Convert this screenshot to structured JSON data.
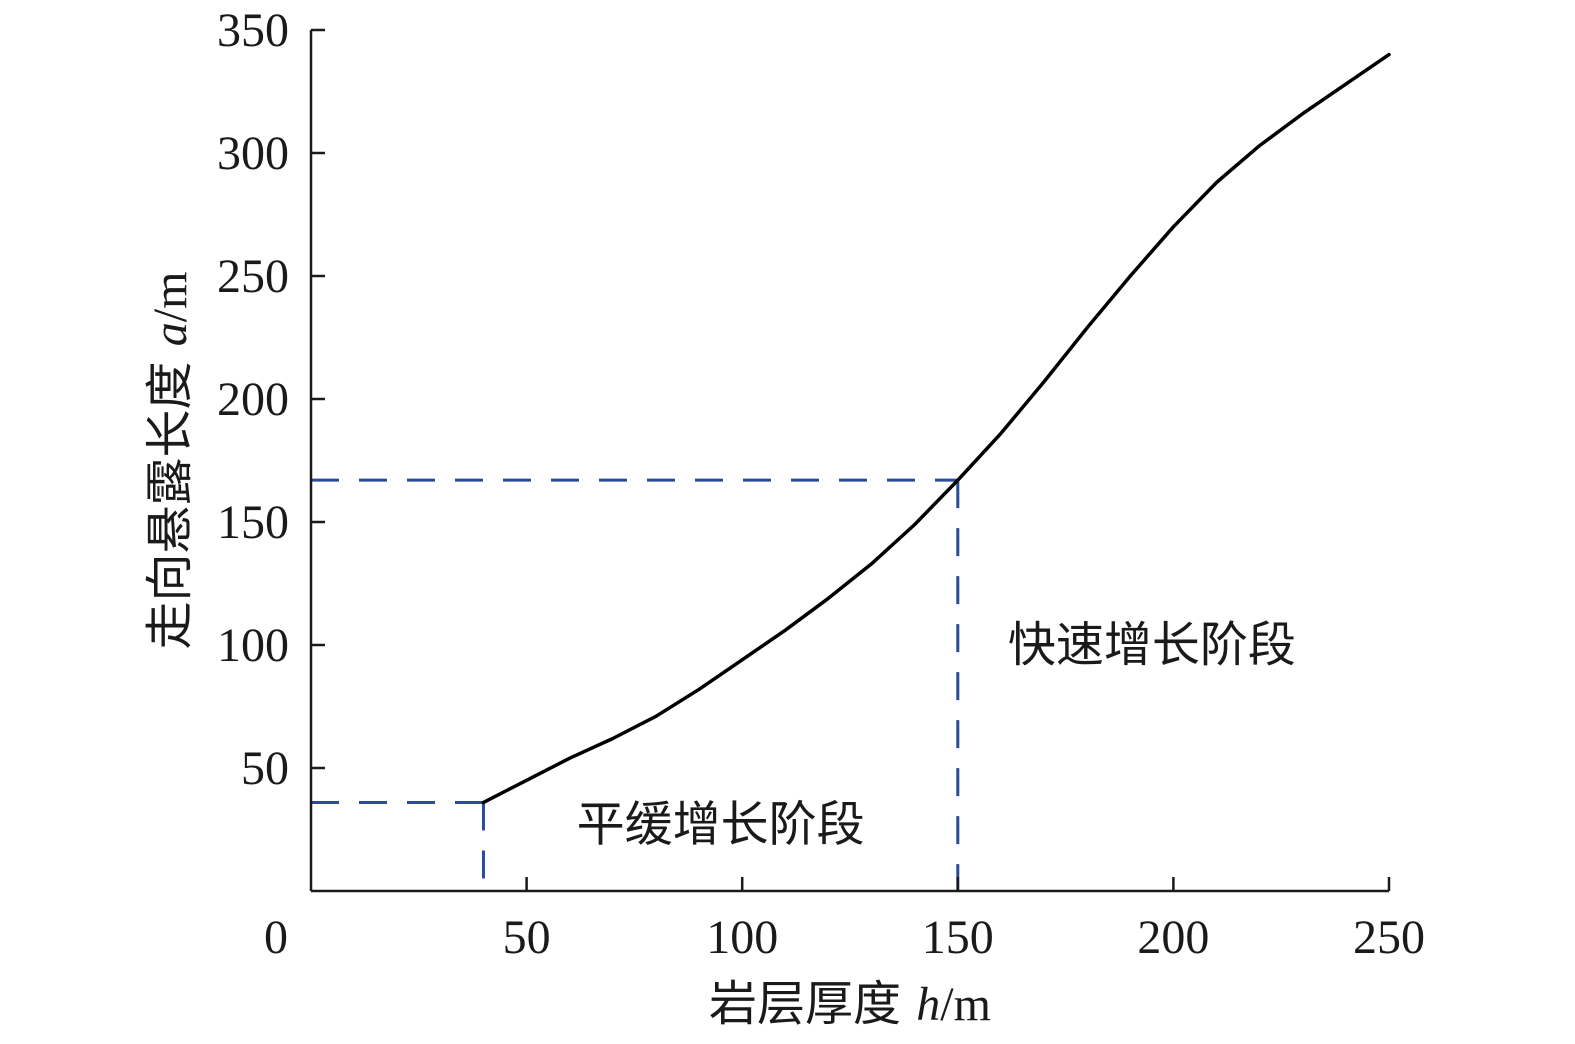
{
  "chart_data": {
    "type": "line",
    "xlabel": {
      "text": "岩层厚度 ",
      "var": "h",
      "unit": "/m"
    },
    "ylabel": {
      "text": "走向悬露长度 ",
      "var": "a",
      "unit": "/m"
    },
    "xlim": [
      0,
      250
    ],
    "ylim": [
      0,
      350
    ],
    "x_ticks": [
      0,
      50,
      100,
      150,
      200,
      250
    ],
    "y_ticks": [
      50,
      100,
      150,
      200,
      250,
      300,
      350
    ],
    "origin_label": "0",
    "grid": false,
    "series": [
      {
        "x": [
          40,
          50,
          60,
          70,
          80,
          90,
          100,
          110,
          120,
          130,
          140,
          150,
          160,
          170,
          180,
          190,
          200,
          210,
          220,
          230,
          240,
          250
        ],
        "y": [
          36,
          45,
          54,
          62,
          71,
          82,
          94,
          106,
          119,
          133,
          149,
          167,
          186,
          207,
          229,
          250,
          270,
          288,
          303,
          316,
          328,
          340
        ],
        "color": "#000000"
      }
    ],
    "reference_lines": [
      {
        "point": [
          40,
          36
        ],
        "color": "#2b4a9a",
        "style": "dashed"
      },
      {
        "point": [
          150,
          167
        ],
        "color": "#2b4a9a",
        "style": "dashed"
      }
    ],
    "annotations": [
      {
        "text": "平缓增长阶段",
        "x": 95,
        "y": 27
      },
      {
        "text": "快速增长阶段",
        "x": 195,
        "y": 100
      }
    ]
  }
}
